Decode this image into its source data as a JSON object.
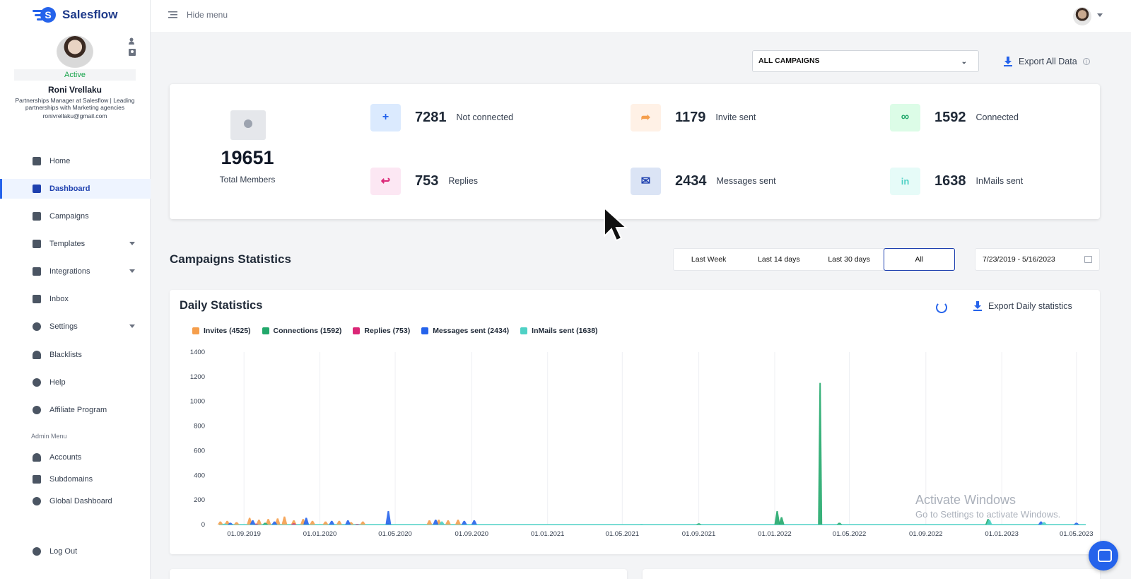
{
  "app": {
    "name": "Salesflow"
  },
  "topbar": {
    "hide_menu": "Hide menu"
  },
  "profile": {
    "status": "Active",
    "name": "Roni Vrellaku",
    "description": "Partnerships Manager at Salesflow | Leading partnerships with Marketing agencies",
    "email": "ronivrellaku@gmail.com"
  },
  "nav": {
    "items": [
      {
        "label": "Home",
        "icon": "home-icon"
      },
      {
        "label": "Dashboard",
        "icon": "bar-chart-icon"
      },
      {
        "label": "Campaigns",
        "icon": "grid-icon"
      },
      {
        "label": "Templates",
        "icon": "chat-icon"
      },
      {
        "label": "Integrations",
        "icon": "network-icon"
      },
      {
        "label": "Inbox",
        "icon": "message-icon"
      },
      {
        "label": "Settings",
        "icon": "gear-icon"
      },
      {
        "label": "Blacklists",
        "icon": "user-block-icon"
      },
      {
        "label": "Help",
        "icon": "help-icon"
      },
      {
        "label": "Affiliate Program",
        "icon": "asterisk-icon"
      }
    ],
    "admin_label": "Admin Menu",
    "admin_items": [
      {
        "label": "Accounts",
        "icon": "user-icon"
      },
      {
        "label": "Subdomains",
        "icon": "building-icon"
      },
      {
        "label": "Global Dashboard",
        "icon": "globe-icon"
      }
    ],
    "logout": "Log Out"
  },
  "toolbar": {
    "campaign_select": "ALL CAMPAIGNS",
    "export_all": "Export All Data"
  },
  "stats": {
    "total": {
      "value": "19651",
      "label": "Total Members"
    },
    "not_connected": {
      "value": "7281",
      "label": "Not connected"
    },
    "invite_sent": {
      "value": "1179",
      "label": "Invite sent"
    },
    "connected": {
      "value": "1592",
      "label": "Connected"
    },
    "replies": {
      "value": "753",
      "label": "Replies"
    },
    "messages_sent": {
      "value": "2434",
      "label": "Messages sent"
    },
    "inmails_sent": {
      "value": "1638",
      "label": "InMails sent"
    }
  },
  "campaign_stats": {
    "title": "Campaigns Statistics",
    "ranges": [
      "Last Week",
      "Last 14 days",
      "Last 30 days",
      "All"
    ],
    "selected_range": "All",
    "date_range": "7/23/2019 - 5/16/2023"
  },
  "daily": {
    "title": "Daily Statistics",
    "export_label": "Export Daily statistics"
  },
  "watermark": {
    "line1": "Activate Windows",
    "line2": "Go to Settings to activate Windows."
  },
  "colors": {
    "invites": "#f59e4c",
    "connections": "#22a86b",
    "replies": "#db2777",
    "messages": "#2563eb",
    "inmails": "#4fd1c5",
    "accent": "#1e40af"
  },
  "chart_data": {
    "type": "area",
    "title": "",
    "xlabel": "",
    "ylabel": "",
    "ylim": [
      0,
      1400
    ],
    "yticks": [
      0,
      200,
      400,
      600,
      800,
      1000,
      1200,
      1400
    ],
    "xticks": [
      "01.09.2019",
      "01.01.2020",
      "01.05.2020",
      "01.09.2020",
      "01.01.2021",
      "01.05.2021",
      "01.09.2021",
      "01.01.2022",
      "01.05.2022",
      "01.09.2022",
      "01.01.2023",
      "01.05.2023"
    ],
    "x_range": [
      "2019-07-23",
      "2023-05-16"
    ],
    "legend_position": "top-left",
    "grid": "vertical",
    "series": [
      {
        "name": "Invites (4525)",
        "color_key": "invites",
        "points": [
          [
            "2019-07-25",
            25
          ],
          [
            "2019-08-05",
            30
          ],
          [
            "2019-08-20",
            20
          ],
          [
            "2019-09-10",
            55
          ],
          [
            "2019-09-25",
            40
          ],
          [
            "2019-10-10",
            45
          ],
          [
            "2019-10-25",
            50
          ],
          [
            "2019-11-05",
            65
          ],
          [
            "2019-11-20",
            35
          ],
          [
            "2019-12-05",
            45
          ],
          [
            "2019-12-20",
            30
          ],
          [
            "2020-01-10",
            25
          ],
          [
            "2020-02-01",
            30
          ],
          [
            "2020-02-20",
            20
          ],
          [
            "2020-03-10",
            25
          ],
          [
            "2020-06-25",
            35
          ],
          [
            "2020-07-10",
            40
          ],
          [
            "2020-07-25",
            35
          ],
          [
            "2020-08-10",
            40
          ]
        ]
      },
      {
        "name": "Connections (1592)",
        "color_key": "connections",
        "points": [
          [
            "2019-10-05",
            15
          ],
          [
            "2020-04-20",
            10
          ],
          [
            "2021-09-01",
            10
          ],
          [
            "2022-01-05",
            110
          ],
          [
            "2022-01-12",
            60
          ],
          [
            "2022-03-15",
            1150
          ],
          [
            "2022-04-15",
            15
          ],
          [
            "2022-12-10",
            45
          ]
        ]
      },
      {
        "name": "Replies (753)",
        "color_key": "replies",
        "points": [
          [
            "2019-09-20",
            8
          ],
          [
            "2019-11-20",
            10
          ],
          [
            "2020-03-01",
            5
          ],
          [
            "2020-07-15",
            8
          ]
        ]
      },
      {
        "name": "Messages sent (2434)",
        "color_key": "messages",
        "points": [
          [
            "2019-08-10",
            15
          ],
          [
            "2019-09-15",
            35
          ],
          [
            "2019-10-20",
            25
          ],
          [
            "2019-12-10",
            55
          ],
          [
            "2020-01-20",
            30
          ],
          [
            "2020-02-15",
            35
          ],
          [
            "2020-04-20",
            110
          ],
          [
            "2020-07-05",
            40
          ],
          [
            "2020-08-20",
            30
          ],
          [
            "2020-09-05",
            35
          ],
          [
            "2023-03-05",
            25
          ],
          [
            "2023-05-01",
            15
          ]
        ]
      },
      {
        "name": "InMails sent (1638)",
        "color_key": "inmails",
        "points": [
          [
            "2019-08-01",
            8
          ],
          [
            "2020-07-15",
            25
          ],
          [
            "2021-06-01",
            5
          ],
          [
            "2022-12-12",
            40
          ],
          [
            "2023-03-10",
            20
          ]
        ]
      }
    ]
  }
}
